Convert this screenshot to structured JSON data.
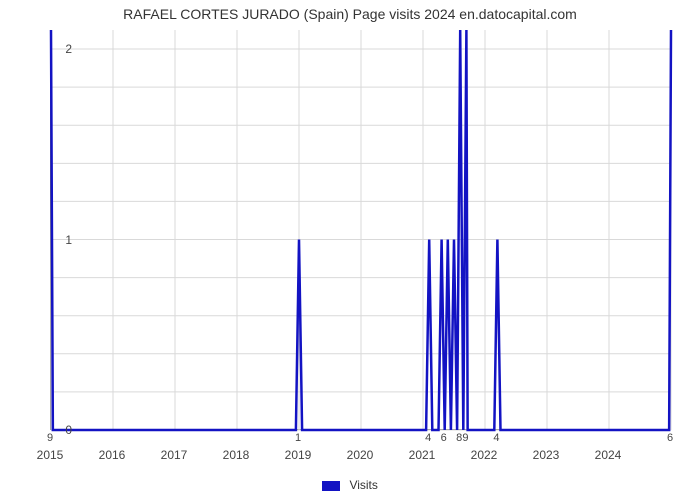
{
  "chart": {
    "type": "line",
    "title": "RAFAEL CORTES JURADO (Spain) Page visits 2024 en.datocapital.com",
    "title_fontsize": 14,
    "title_color": "#333333",
    "background_color": "#ffffff",
    "grid_color": "#d9d9d9",
    "axis_color": "#777777",
    "series_color": "#1313c3",
    "series_line_width": 2.5,
    "ylim": [
      0,
      2.1
    ],
    "ytick_positions": [
      0,
      1,
      2
    ],
    "ytick_labels": [
      "0",
      "1",
      "2"
    ],
    "y_minor_divisions": 5,
    "xlim": [
      0,
      100
    ],
    "xtick_positions": [
      0,
      10,
      20,
      30,
      40,
      50,
      60,
      70,
      80,
      90,
      100
    ],
    "xtick_labels": [
      "2015",
      "2016",
      "2017",
      "2018",
      "2019",
      "2020",
      "2021",
      "2022",
      "2023",
      "2024",
      ""
    ],
    "data_x": [
      0,
      0.3,
      39.5,
      40,
      40.5,
      60.5,
      61,
      61.5,
      62.5,
      63,
      63.5,
      64,
      64.5,
      65,
      65.5,
      66,
      66.5,
      67,
      67.2,
      71.5,
      72,
      72.5,
      99.7,
      100
    ],
    "data_y": [
      2.1,
      0,
      0,
      1,
      0,
      0,
      1,
      0,
      0,
      1,
      0,
      1,
      0,
      1,
      0,
      2.1,
      0,
      2.1,
      0,
      0,
      1,
      0,
      0,
      2.1
    ],
    "point_labels": [
      {
        "x": 0,
        "text": "9"
      },
      {
        "x": 40,
        "text": "1"
      },
      {
        "x": 61,
        "text": "4"
      },
      {
        "x": 63.5,
        "text": "6"
      },
      {
        "x": 66,
        "text": "8"
      },
      {
        "x": 67,
        "text": "9"
      },
      {
        "x": 72,
        "text": "4"
      },
      {
        "x": 100,
        "text": "6"
      }
    ],
    "legend": {
      "label": "Visits",
      "swatch_color": "#1313c3"
    },
    "label_fontsize": 12
  }
}
